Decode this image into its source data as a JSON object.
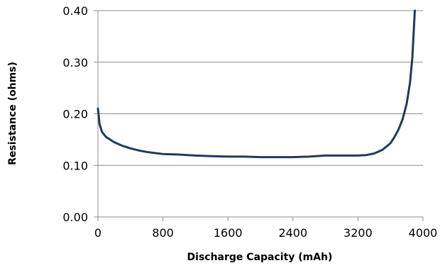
{
  "chart_data": {
    "type": "line",
    "title": "",
    "xlabel": "Discharge Capacity (mAh)",
    "ylabel": "Resistance (ohms)",
    "xlim": [
      0,
      4000
    ],
    "ylim": [
      0,
      0.4
    ],
    "x_ticks": [
      0,
      800,
      1600,
      2400,
      3200,
      4000
    ],
    "x_tick_labels": [
      "0",
      "800",
      "1600",
      "2400",
      "3200",
      "4000"
    ],
    "y_ticks": [
      0,
      0.1,
      0.2,
      0.3,
      0.4
    ],
    "y_tick_labels": [
      "0.00",
      "0.10",
      "0.20",
      "0.30",
      "0.40"
    ],
    "grid": "horizontal",
    "legend": "none",
    "series": [
      {
        "color": "#1f3a5f",
        "x": [
          0,
          20,
          50,
          100,
          200,
          300,
          400,
          500,
          600,
          700,
          800,
          1000,
          1200,
          1400,
          1600,
          1800,
          2000,
          2200,
          2400,
          2600,
          2800,
          3000,
          3200,
          3300,
          3400,
          3500,
          3600,
          3650,
          3700,
          3750,
          3800,
          3840,
          3870,
          3900
        ],
        "y": [
          0.21,
          0.18,
          0.165,
          0.155,
          0.145,
          0.138,
          0.133,
          0.129,
          0.126,
          0.124,
          0.122,
          0.121,
          0.119,
          0.118,
          0.117,
          0.117,
          0.116,
          0.116,
          0.116,
          0.117,
          0.119,
          0.119,
          0.119,
          0.12,
          0.123,
          0.13,
          0.143,
          0.155,
          0.17,
          0.19,
          0.22,
          0.26,
          0.31,
          0.4
        ]
      }
    ]
  }
}
